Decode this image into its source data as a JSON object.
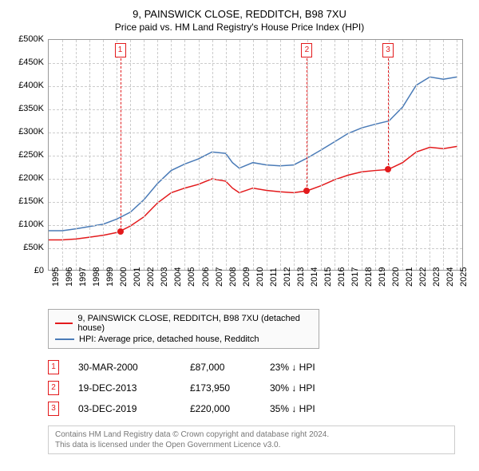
{
  "title": "9, PAINSWICK CLOSE, REDDITCH, B98 7XU",
  "subtitle": "Price paid vs. HM Land Registry's House Price Index (HPI)",
  "chart": {
    "type": "line",
    "background_color": "#ffffff",
    "grid_color": "#cccccc",
    "border_color": "#999999",
    "y_axis": {
      "min": 0,
      "max": 500000,
      "step": 50000,
      "labels": [
        "£0",
        "£50K",
        "£100K",
        "£150K",
        "£200K",
        "£250K",
        "£300K",
        "£350K",
        "£400K",
        "£450K",
        "£500K"
      ]
    },
    "x_axis": {
      "min": 1995,
      "max": 2025.5,
      "labels": [
        "1995",
        "1996",
        "1997",
        "1998",
        "1999",
        "2000",
        "2001",
        "2002",
        "2003",
        "2004",
        "2005",
        "2006",
        "2007",
        "2008",
        "2009",
        "2010",
        "2011",
        "2012",
        "2013",
        "2014",
        "2015",
        "2016",
        "2017",
        "2018",
        "2019",
        "2020",
        "2021",
        "2022",
        "2023",
        "2024",
        "2025"
      ]
    },
    "series": [
      {
        "name": "price_paid",
        "legend": "9, PAINSWICK CLOSE, REDDITCH, B98 7XU (detached house)",
        "color": "#e31a1c",
        "line_width": 1.5,
        "points": [
          [
            1995.0,
            68000
          ],
          [
            1996.0,
            68000
          ],
          [
            1997.0,
            70000
          ],
          [
            1998.0,
            74000
          ],
          [
            1999.0,
            78000
          ],
          [
            2000.0,
            84000
          ],
          [
            2000.25,
            87000
          ],
          [
            2001.0,
            98000
          ],
          [
            2002.0,
            118000
          ],
          [
            2003.0,
            148000
          ],
          [
            2004.0,
            170000
          ],
          [
            2005.0,
            180000
          ],
          [
            2006.0,
            188000
          ],
          [
            2007.0,
            200000
          ],
          [
            2008.0,
            195000
          ],
          [
            2008.5,
            180000
          ],
          [
            2009.0,
            170000
          ],
          [
            2010.0,
            180000
          ],
          [
            2011.0,
            175000
          ],
          [
            2012.0,
            172000
          ],
          [
            2013.0,
            170000
          ],
          [
            2013.97,
            173950
          ],
          [
            2015.0,
            185000
          ],
          [
            2016.0,
            198000
          ],
          [
            2017.0,
            208000
          ],
          [
            2018.0,
            215000
          ],
          [
            2019.0,
            218000
          ],
          [
            2019.93,
            220000
          ],
          [
            2021.0,
            235000
          ],
          [
            2022.0,
            258000
          ],
          [
            2023.0,
            268000
          ],
          [
            2024.0,
            265000
          ],
          [
            2025.0,
            270000
          ]
        ]
      },
      {
        "name": "hpi",
        "legend": "HPI: Average price, detached house, Redditch",
        "color": "#4a7bb7",
        "line_width": 1.5,
        "points": [
          [
            1995.0,
            88000
          ],
          [
            1996.0,
            88000
          ],
          [
            1997.0,
            92000
          ],
          [
            1998.0,
            97000
          ],
          [
            1999.0,
            102000
          ],
          [
            2000.0,
            113000
          ],
          [
            2001.0,
            128000
          ],
          [
            2002.0,
            155000
          ],
          [
            2003.0,
            190000
          ],
          [
            2004.0,
            218000
          ],
          [
            2005.0,
            232000
          ],
          [
            2006.0,
            243000
          ],
          [
            2007.0,
            258000
          ],
          [
            2008.0,
            255000
          ],
          [
            2008.5,
            235000
          ],
          [
            2009.0,
            223000
          ],
          [
            2010.0,
            235000
          ],
          [
            2011.0,
            230000
          ],
          [
            2012.0,
            228000
          ],
          [
            2013.0,
            230000
          ],
          [
            2014.0,
            245000
          ],
          [
            2015.0,
            262000
          ],
          [
            2016.0,
            280000
          ],
          [
            2017.0,
            298000
          ],
          [
            2018.0,
            310000
          ],
          [
            2019.0,
            318000
          ],
          [
            2020.0,
            325000
          ],
          [
            2021.0,
            355000
          ],
          [
            2022.0,
            402000
          ],
          [
            2023.0,
            420000
          ],
          [
            2024.0,
            415000
          ],
          [
            2025.0,
            420000
          ]
        ]
      }
    ],
    "markers": [
      {
        "num": "1",
        "year": 2000.25,
        "value": 87000,
        "color": "#e31a1c"
      },
      {
        "num": "2",
        "year": 2013.97,
        "value": 173950,
        "color": "#e31a1c"
      },
      {
        "num": "3",
        "year": 2019.93,
        "value": 220000,
        "color": "#e31a1c"
      }
    ]
  },
  "legend": {
    "items": [
      {
        "color": "#e31a1c",
        "label": "9, PAINSWICK CLOSE, REDDITCH, B98 7XU (detached house)"
      },
      {
        "color": "#4a7bb7",
        "label": "HPI: Average price, detached house, Redditch"
      }
    ]
  },
  "data_rows": [
    {
      "num": "1",
      "color": "#e31a1c",
      "date": "30-MAR-2000",
      "price": "£87,000",
      "pct": "23% ↓ HPI"
    },
    {
      "num": "2",
      "color": "#e31a1c",
      "date": "19-DEC-2013",
      "price": "£173,950",
      "pct": "30% ↓ HPI"
    },
    {
      "num": "3",
      "color": "#e31a1c",
      "date": "03-DEC-2019",
      "price": "£220,000",
      "pct": "35% ↓ HPI"
    }
  ],
  "footer": {
    "line1": "Contains HM Land Registry data © Crown copyright and database right 2024.",
    "line2": "This data is licensed under the Open Government Licence v3.0."
  }
}
